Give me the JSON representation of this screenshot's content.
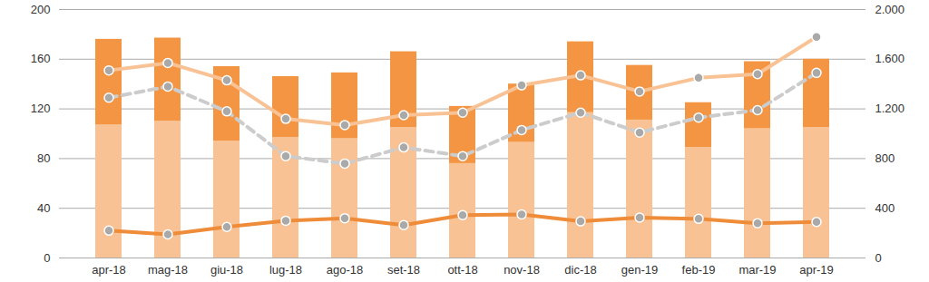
{
  "chart_data": {
    "type": "bar",
    "categories": [
      "apr-18",
      "mag-18",
      "giu-18",
      "lug-18",
      "ago-18",
      "set-18",
      "ott-18",
      "nov-18",
      "dic-18",
      "gen-19",
      "feb-19",
      "mar-19",
      "apr-19"
    ],
    "stacked": true,
    "grid": true,
    "ylim": [
      0,
      200
    ],
    "yticks": [
      0,
      40,
      80,
      120,
      160,
      200
    ],
    "y2lim": [
      0,
      2000
    ],
    "y2ticks": [
      0,
      400,
      800,
      {
        "value": 1200,
        "label": "1.200"
      },
      {
        "value": 1600,
        "label": "1.600"
      },
      {
        "value": 2000,
        "label": "2.000"
      }
    ],
    "series": [
      {
        "type": "bar",
        "color": "#f8c294",
        "values": [
          107,
          110,
          94,
          97,
          96,
          105,
          76,
          93,
          117,
          111,
          89,
          104,
          105
        ]
      },
      {
        "type": "bar",
        "color": "#f39542",
        "values": [
          69,
          67,
          60,
          49,
          53,
          61,
          46,
          47,
          57,
          44,
          36,
          54,
          55
        ]
      },
      {
        "type": "line",
        "axis": "y2",
        "color": "#f8c294",
        "line_style": "solid",
        "marker": "circle",
        "values": [
          1510,
          1570,
          1430,
          1120,
          1070,
          1150,
          1170,
          1390,
          1470,
          1340,
          1450,
          1480,
          1780
        ]
      },
      {
        "type": "line",
        "axis": "y2",
        "color": "#cccccc",
        "line_style": "dashed",
        "marker": "circle",
        "values": [
          1290,
          1380,
          1180,
          820,
          760,
          890,
          820,
          1030,
          1170,
          1010,
          1130,
          1190,
          1490
        ]
      },
      {
        "type": "line",
        "axis": "y2",
        "color": "#ef8c3a",
        "line_style": "solid",
        "marker": "circle",
        "values": [
          220,
          190,
          250,
          300,
          320,
          265,
          345,
          350,
          295,
          325,
          315,
          280,
          290
        ]
      }
    ]
  }
}
